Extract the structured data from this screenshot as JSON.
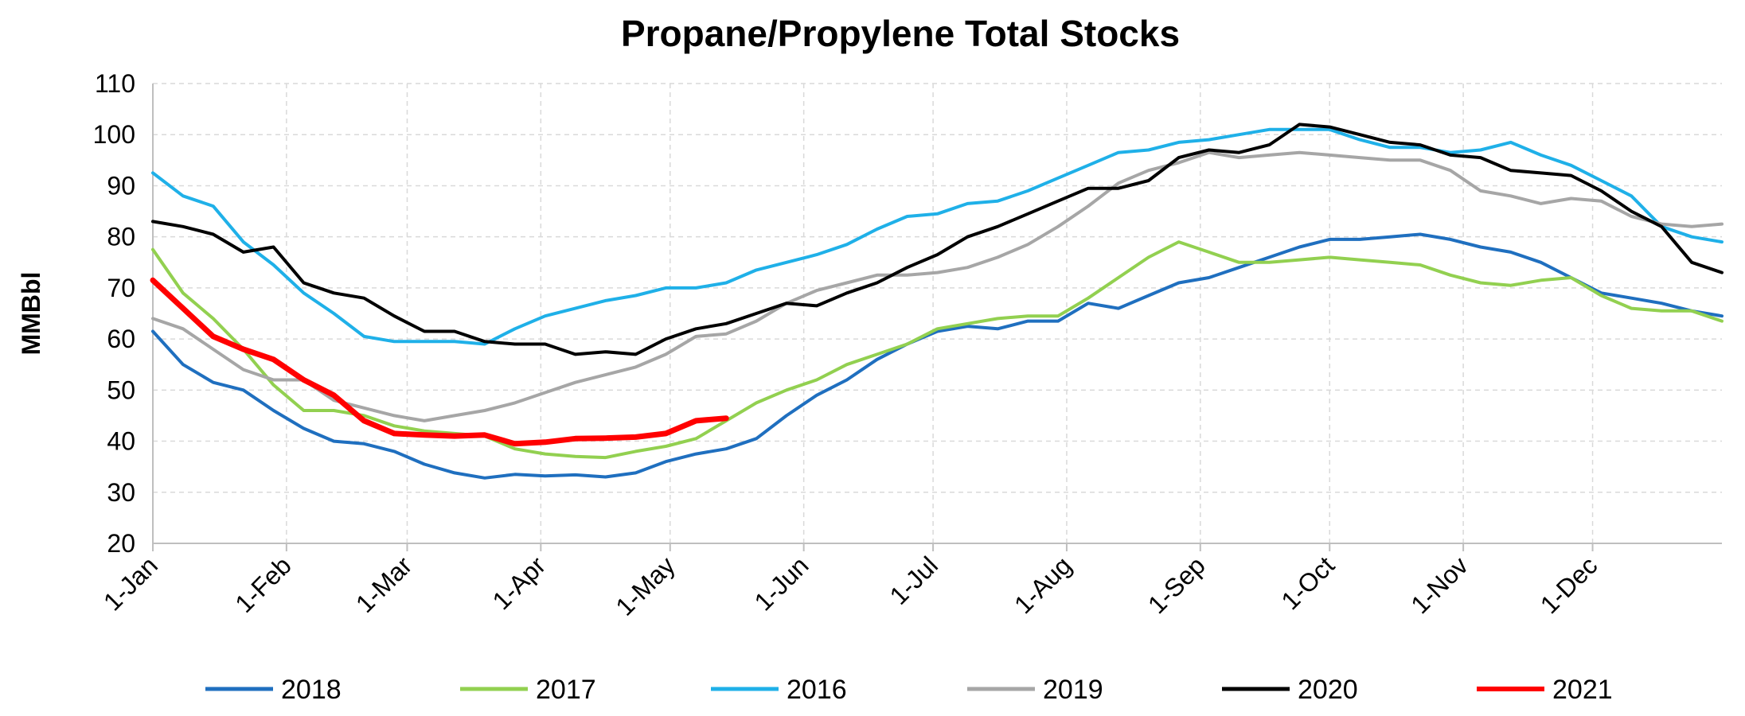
{
  "chart_data": {
    "type": "line",
    "title": "Propane/Propylene Total Stocks",
    "ylabel": "MMBbl",
    "xlabel": "",
    "ylim": [
      20,
      110
    ],
    "yticks": [
      20,
      30,
      40,
      50,
      60,
      70,
      80,
      90,
      100,
      110
    ],
    "xlim": [
      0,
      364
    ],
    "x_ticks": [
      {
        "label": "1-Jan",
        "day": 0
      },
      {
        "label": "1-Feb",
        "day": 31
      },
      {
        "label": "1-Mar",
        "day": 59
      },
      {
        "label": "1-Apr",
        "day": 90
      },
      {
        "label": "1-May",
        "day": 120
      },
      {
        "label": "1-Jun",
        "day": 151
      },
      {
        "label": "1-Jul",
        "day": 181
      },
      {
        "label": "1-Aug",
        "day": 212
      },
      {
        "label": "1-Sep",
        "day": 243
      },
      {
        "label": "1-Oct",
        "day": 273
      },
      {
        "label": "1-Nov",
        "day": 304
      },
      {
        "label": "1-Dec",
        "day": 334
      }
    ],
    "grid": "dashed vertical and horizontal",
    "legend": "bottom",
    "series": [
      {
        "name": "2018",
        "color": "#1f6fbf",
        "width": 4,
        "x": [
          0,
          7,
          14,
          21,
          28,
          35,
          42,
          49,
          56,
          63,
          70,
          77,
          84,
          91,
          98,
          105,
          112,
          119,
          126,
          133,
          140,
          147,
          154,
          161,
          168,
          175,
          182,
          189,
          196,
          203,
          210,
          217,
          224,
          231,
          238,
          245,
          252,
          259,
          266,
          273,
          280,
          287,
          294,
          301,
          308,
          315,
          322,
          329,
          336,
          343,
          350,
          357,
          364
        ],
        "y": [
          61.5,
          55,
          51.5,
          50,
          46,
          42.5,
          40,
          39.5,
          38,
          35.5,
          33.8,
          32.8,
          33.5,
          33.2,
          33.4,
          33,
          33.8,
          36,
          37.5,
          38.5,
          40.5,
          45,
          49,
          52,
          56,
          59,
          61.5,
          62.5,
          62,
          63.5,
          63.5,
          67,
          66,
          68.5,
          71,
          72,
          74,
          76,
          78,
          79.5,
          79.5,
          80,
          80.5,
          79.5,
          78,
          77,
          75,
          72,
          69,
          68,
          67,
          65.5,
          64.5
        ]
      },
      {
        "name": "2017",
        "color": "#92d050",
        "width": 4,
        "x": [
          0,
          7,
          14,
          21,
          28,
          35,
          42,
          49,
          56,
          63,
          70,
          77,
          84,
          91,
          98,
          105,
          112,
          119,
          126,
          133,
          140,
          147,
          154,
          161,
          168,
          175,
          182,
          189,
          196,
          203,
          210,
          217,
          224,
          231,
          238,
          245,
          252,
          259,
          266,
          273,
          280,
          287,
          294,
          301,
          308,
          315,
          322,
          329,
          336,
          343,
          350,
          357,
          364
        ],
        "y": [
          77.5,
          69,
          64,
          58,
          51,
          46,
          46,
          45,
          43,
          42,
          41.5,
          41,
          38.5,
          37.5,
          37,
          36.8,
          38,
          39,
          40.5,
          44,
          47.5,
          50,
          52,
          55,
          57,
          59,
          62,
          63,
          64,
          64.5,
          64.5,
          68,
          72,
          76,
          79,
          77,
          75,
          75,
          75.5,
          76,
          75.5,
          75,
          74.5,
          72.5,
          71,
          70.5,
          71.5,
          72,
          68.5,
          66,
          65.5,
          65.5,
          63.5
        ]
      },
      {
        "name": "2016",
        "color": "#1fb0e8",
        "width": 4,
        "x": [
          0,
          7,
          14,
          21,
          28,
          35,
          42,
          49,
          56,
          63,
          70,
          77,
          84,
          91,
          98,
          105,
          112,
          119,
          126,
          133,
          140,
          147,
          154,
          161,
          168,
          175,
          182,
          189,
          196,
          203,
          210,
          217,
          224,
          231,
          238,
          245,
          252,
          259,
          266,
          273,
          280,
          287,
          294,
          301,
          308,
          315,
          322,
          329,
          336,
          343,
          350,
          357,
          364
        ],
        "y": [
          92.5,
          88,
          86,
          79,
          74.5,
          69,
          65,
          60.5,
          59.5,
          59.5,
          59.5,
          59,
          62,
          64.5,
          66,
          67.5,
          68.5,
          70,
          70,
          71,
          73.5,
          75,
          76.5,
          78.5,
          81.5,
          84,
          84.5,
          86.5,
          87,
          89,
          91.5,
          94,
          96.5,
          97,
          98.5,
          99,
          100,
          101,
          101,
          101,
          99,
          97.5,
          97.5,
          96.5,
          97,
          98.5,
          96,
          94,
          91,
          88,
          82,
          80,
          79
        ]
      },
      {
        "name": "2019",
        "color": "#a6a6a6",
        "width": 4,
        "x": [
          0,
          7,
          14,
          21,
          28,
          35,
          42,
          49,
          56,
          63,
          70,
          77,
          84,
          91,
          98,
          105,
          112,
          119,
          126,
          133,
          140,
          147,
          154,
          161,
          168,
          175,
          182,
          189,
          196,
          203,
          210,
          217,
          224,
          231,
          238,
          245,
          252,
          259,
          266,
          273,
          280,
          287,
          294,
          301,
          308,
          315,
          322,
          329,
          336,
          343,
          350,
          357,
          364
        ],
        "y": [
          64,
          62,
          58,
          54,
          52,
          52,
          48,
          46.5,
          45,
          44,
          45,
          46,
          47.5,
          49.5,
          51.5,
          53,
          54.5,
          57,
          60.5,
          61,
          63.5,
          67,
          69.5,
          71,
          72.5,
          72.5,
          73,
          74,
          76,
          78.5,
          82,
          86,
          90.5,
          93,
          94.5,
          96.5,
          95.5,
          96,
          96.5,
          96,
          95.5,
          95,
          95,
          93,
          89,
          88,
          86.5,
          87.5,
          87,
          84,
          82.5,
          82,
          82.5
        ]
      },
      {
        "name": "2020",
        "color": "#000000",
        "width": 4,
        "x": [
          0,
          7,
          14,
          21,
          28,
          35,
          42,
          49,
          56,
          63,
          70,
          77,
          84,
          91,
          98,
          105,
          112,
          119,
          126,
          133,
          140,
          147,
          154,
          161,
          168,
          175,
          182,
          189,
          196,
          203,
          210,
          217,
          224,
          231,
          238,
          245,
          252,
          259,
          266,
          273,
          280,
          287,
          294,
          301,
          308,
          315,
          322,
          329,
          336,
          343,
          350,
          357,
          364
        ],
        "y": [
          83,
          82,
          80.5,
          77,
          78,
          71,
          69,
          68,
          64.5,
          61.5,
          61.5,
          59.5,
          59,
          59,
          57,
          57.5,
          57,
          60,
          62,
          63,
          65,
          67,
          66.5,
          69,
          71,
          74,
          76.5,
          80,
          82,
          84.5,
          87,
          89.5,
          89.5,
          91,
          95.5,
          97,
          96.5,
          98,
          102,
          101.5,
          100,
          98.5,
          98,
          96,
          95.5,
          93,
          92.5,
          92,
          89,
          85,
          82,
          75,
          73
        ]
      },
      {
        "name": "2021",
        "color": "#ff0000",
        "width": 7,
        "x": [
          0,
          7,
          14,
          21,
          28,
          35,
          42,
          49,
          56,
          63,
          70,
          77,
          84,
          91,
          98,
          105,
          112,
          119,
          126,
          133
        ],
        "y": [
          71.5,
          66,
          60.5,
          58,
          56,
          52,
          49,
          44,
          41.5,
          41.2,
          41,
          41.2,
          39.5,
          39.8,
          40.5,
          40.6,
          40.8,
          41.5,
          44,
          44.5
        ]
      }
    ]
  }
}
